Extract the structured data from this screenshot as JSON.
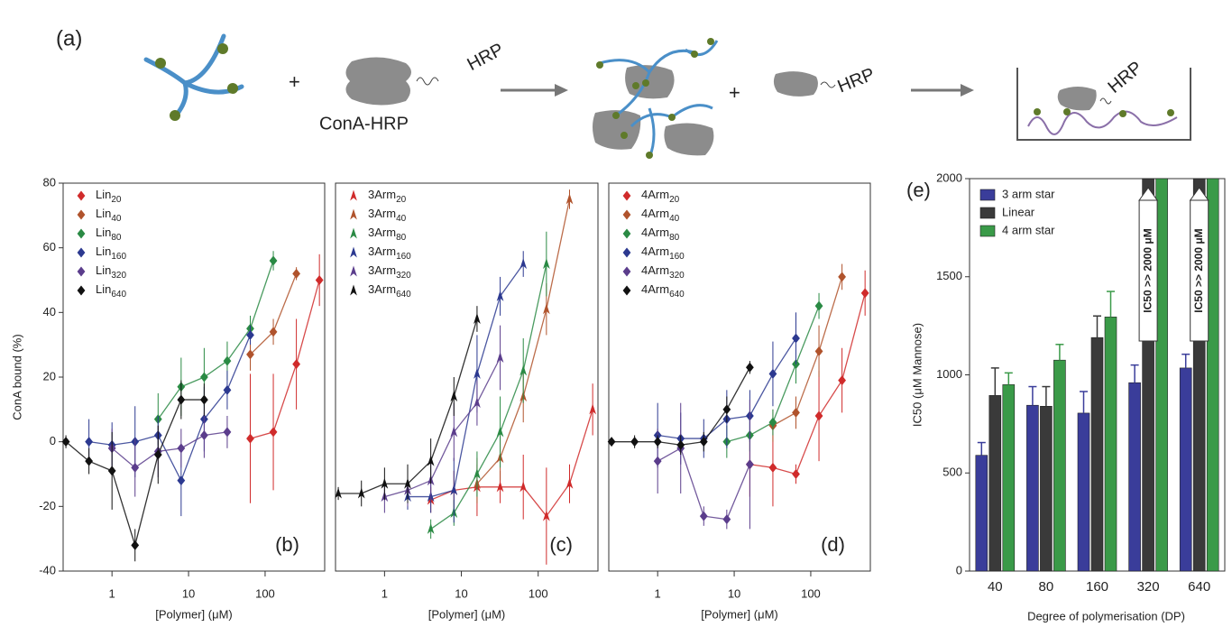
{
  "scheme": {
    "label": "(a)",
    "texts": [
      "HRP",
      "ConA-HRP",
      "HRP",
      "HRP"
    ]
  },
  "chart_data": [
    {
      "type": "scatter",
      "panel": "(b)",
      "y_label": "ConA bound (%)",
      "x_label": "[Polymer] (μM)",
      "log_x": true,
      "xlim": [
        0.23,
        600
      ],
      "xticks": [
        1,
        10,
        100
      ],
      "ylim": [
        -40,
        80
      ],
      "yticks": [
        -40,
        -20,
        0,
        20,
        40,
        60,
        80
      ],
      "marker": "diamond",
      "legend": "upper left",
      "series": [
        {
          "name": "Lin20",
          "color": "#d02b2b",
          "x": [
            64,
            128,
            256,
            512
          ],
          "values": [
            1,
            3,
            24,
            50
          ],
          "errors": [
            20,
            18,
            14,
            8
          ]
        },
        {
          "name": "Lin40",
          "color": "#b0532c",
          "x": [
            64,
            128,
            256
          ],
          "values": [
            27,
            34,
            52
          ],
          "errors": [
            5,
            4,
            2
          ]
        },
        {
          "name": "Lin80",
          "color": "#2a8a44",
          "x": [
            4,
            8,
            16,
            32,
            64,
            128
          ],
          "values": [
            7,
            17,
            20,
            25,
            35,
            56
          ],
          "errors": [
            8,
            9,
            9,
            6,
            4,
            3
          ]
        },
        {
          "name": "Lin160",
          "color": "#2c3990",
          "x": [
            0.5,
            1,
            2,
            4,
            8,
            16,
            32,
            64
          ],
          "values": [
            0,
            -1,
            0,
            2,
            -12,
            7,
            16,
            33
          ],
          "errors": [
            7,
            7,
            11,
            6,
            11,
            10,
            6,
            3
          ]
        },
        {
          "name": "Lin320",
          "color": "#5b3d8c",
          "x": [
            1,
            2,
            4,
            8,
            16,
            32
          ],
          "values": [
            -2,
            -8,
            -3,
            -2,
            2,
            3
          ],
          "errors": [
            6,
            9,
            8,
            6,
            7,
            5
          ]
        },
        {
          "name": "Lin640",
          "color": "#111111",
          "x": [
            0.25,
            0.5,
            1,
            2,
            4,
            8,
            16
          ],
          "values": [
            0,
            -6,
            -9,
            -32,
            -4,
            13,
            13
          ],
          "errors": [
            2,
            4,
            12,
            5,
            9,
            6,
            5
          ]
        }
      ]
    },
    {
      "type": "scatter",
      "panel": "(c)",
      "x_label": "[Polymer] (μM)",
      "log_x": true,
      "xlim": [
        0.23,
        600
      ],
      "xticks": [
        1,
        10,
        100
      ],
      "ylim": [
        -40,
        80
      ],
      "marker": "triangle",
      "legend": "upper left",
      "series": [
        {
          "name": "3Arm20",
          "color": "#d02b2b",
          "x": [
            4,
            8,
            16,
            32,
            64,
            128,
            256,
            512
          ],
          "values": [
            -18,
            -15,
            -14,
            -14,
            -14,
            -23,
            -13,
            10
          ],
          "errors": [
            4,
            6,
            9,
            5,
            10,
            15,
            6,
            8
          ]
        },
        {
          "name": "3Arm40",
          "color": "#b0532c",
          "x": [
            16,
            32,
            64,
            128,
            256
          ],
          "values": [
            -13,
            -5,
            14,
            41,
            75
          ],
          "errors": [
            6,
            7,
            8,
            8,
            3
          ]
        },
        {
          "name": "3Arm80",
          "color": "#2a8a44",
          "x": [
            4,
            8,
            16,
            32,
            64,
            128
          ],
          "values": [
            -27,
            -22,
            -10,
            3,
            22,
            55
          ],
          "errors": [
            3,
            4,
            7,
            11,
            10,
            10
          ]
        },
        {
          "name": "3Arm160",
          "color": "#2c3990",
          "x": [
            2,
            4,
            8,
            16,
            32,
            64
          ],
          "values": [
            -17,
            -17,
            -15,
            21,
            45,
            55
          ],
          "errors": [
            4,
            5,
            10,
            12,
            6,
            4
          ]
        },
        {
          "name": "3Arm320",
          "color": "#5b3d8c",
          "x": [
            1,
            2,
            4,
            8,
            16,
            32
          ],
          "values": [
            -17,
            -15,
            -12,
            3,
            12,
            26
          ],
          "errors": [
            5,
            5,
            6,
            9,
            7,
            10
          ]
        },
        {
          "name": "3Arm640",
          "color": "#111111",
          "x": [
            0.25,
            0.5,
            1,
            2,
            4,
            8,
            16
          ],
          "values": [
            -16,
            -16,
            -13,
            -13,
            -6,
            14,
            38
          ],
          "errors": [
            2,
            4,
            5,
            6,
            7,
            6,
            4
          ]
        }
      ]
    },
    {
      "type": "scatter",
      "panel": "(d)",
      "x_label": "[Polymer] (μM)",
      "log_x": true,
      "xlim": [
        0.23,
        600
      ],
      "xticks": [
        1,
        10,
        100
      ],
      "ylim": [
        -40,
        80
      ],
      "marker": "diamond",
      "legend": "upper left",
      "series": [
        {
          "name": "4Arm20",
          "color": "#d02b2b",
          "x": [
            16,
            32,
            64,
            128,
            256,
            512
          ],
          "values": [
            -7,
            -8,
            -10,
            8,
            19,
            46
          ],
          "errors": [
            10,
            12,
            3,
            14,
            10,
            7
          ]
        },
        {
          "name": "4Arm40",
          "color": "#b0532c",
          "x": [
            32,
            64,
            128,
            256
          ],
          "values": [
            5,
            9,
            28,
            51
          ],
          "errors": [
            5,
            5,
            8,
            4
          ]
        },
        {
          "name": "4Arm80",
          "color": "#2a8a44",
          "x": [
            8,
            16,
            32,
            64,
            128
          ],
          "values": [
            0,
            2,
            6,
            24,
            42
          ],
          "errors": [
            5,
            5,
            4,
            6,
            4
          ]
        },
        {
          "name": "4Arm160",
          "color": "#2c3990",
          "x": [
            1,
            2,
            4,
            8,
            16,
            32,
            64
          ],
          "values": [
            2,
            1,
            1,
            7,
            8,
            21,
            32
          ],
          "errors": [
            10,
            8,
            6,
            9,
            8,
            10,
            8
          ]
        },
        {
          "name": "4Arm320",
          "color": "#5b3d8c",
          "x": [
            1,
            2,
            4,
            8,
            16
          ],
          "values": [
            -6,
            -2,
            -23,
            -24,
            -7
          ],
          "errors": [
            10,
            14,
            3,
            3,
            20
          ]
        },
        {
          "name": "4Arm640",
          "color": "#111111",
          "x": [
            0.25,
            0.5,
            1,
            2,
            4,
            8,
            16
          ],
          "values": [
            0,
            0,
            0,
            -1,
            0,
            10,
            23
          ],
          "errors": [
            1,
            2,
            2,
            3,
            3,
            4,
            2
          ]
        }
      ]
    },
    {
      "type": "bar",
      "panel": "(e)",
      "y_label": "IC50 (μM Mannose)",
      "x_label": "Degree of polymerisation (DP)",
      "categories": [
        "40",
        "80",
        "160",
        "320",
        "640"
      ],
      "ylim": [
        0,
        2000
      ],
      "yticks": [
        0,
        500,
        1000,
        1500,
        2000
      ],
      "legend": "upper left",
      "annotations": [
        null,
        null,
        null,
        "IC50 >> 2000 μM",
        "IC50 >> 2000 μM"
      ],
      "series": [
        {
          "name": "3 arm star",
          "color": "#3a3d9a",
          "values": [
            590,
            845,
            805,
            960,
            1035
          ],
          "errors": [
            65,
            95,
            110,
            90,
            70
          ]
        },
        {
          "name": "Linear",
          "color": "#3a3a3a",
          "values": [
            895,
            840,
            1190,
            2000,
            2000
          ],
          "errors": [
            140,
            100,
            110,
            null,
            null
          ]
        },
        {
          "name": "4 arm star",
          "color": "#3a9a48",
          "values": [
            950,
            1075,
            1295,
            2000,
            2000
          ],
          "errors": [
            60,
            80,
            130,
            null,
            null
          ]
        }
      ]
    }
  ]
}
